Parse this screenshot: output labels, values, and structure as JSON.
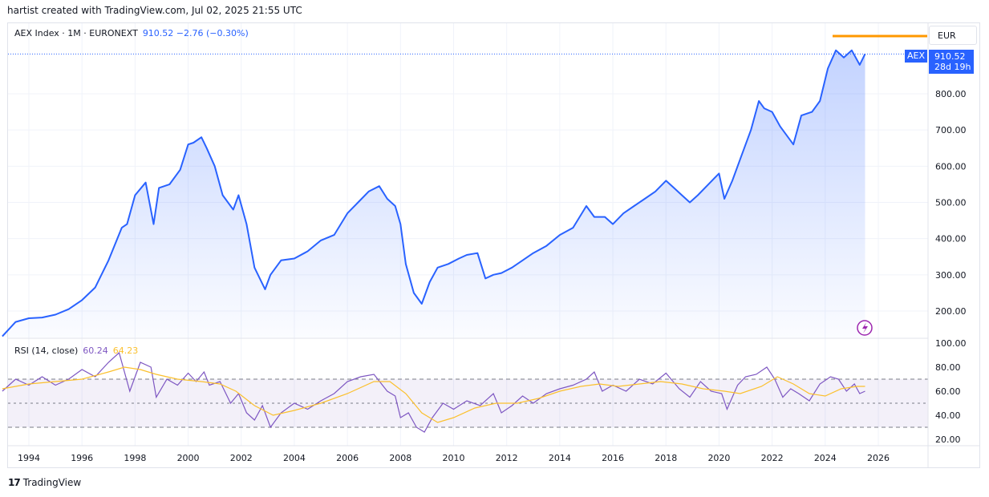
{
  "header": {
    "created_text": "hartist created with TradingView.com, Jul 02, 2025 21:55 UTC"
  },
  "legend": {
    "symbol": "AEX Index · 1M · EURONEXT",
    "values": "910.52  −2.76 (−0.30%)"
  },
  "currency_button": "EUR",
  "last_price": {
    "symbol_tag": "AEX",
    "price": "910.52",
    "countdown": "28d 19h"
  },
  "rsi_legend": {
    "label": "RSI (14, close)",
    "rsi_value": "60.24",
    "ma_value": "64.23"
  },
  "footer": {
    "brand": "TradingView"
  },
  "colors": {
    "price_line": "#2962ff",
    "rsi_line": "#7e57c2",
    "rsi_ma": "#fbc02d",
    "marker_orange": "#ff9800"
  },
  "chart_data": [
    {
      "type": "area",
      "title": "AEX Index · 1M · EURONEXT",
      "ylim": [
        130,
        960
      ],
      "y_ticks": [
        "200.00",
        "300.00",
        "400.00",
        "500.00",
        "600.00",
        "700.00",
        "800.00"
      ],
      "x_ticks": [
        "1994",
        "1996",
        "1998",
        "2000",
        "2002",
        "2004",
        "2006",
        "2008",
        "2010",
        "2012",
        "2014",
        "2016",
        "2018",
        "2020",
        "2022",
        "2024",
        "2026"
      ],
      "x": [
        1993.0,
        1993.5,
        1994.0,
        1994.5,
        1995.0,
        1995.5,
        1996.0,
        1996.5,
        1997.0,
        1997.5,
        1997.7,
        1998.0,
        1998.4,
        1998.7,
        1998.9,
        1999.3,
        1999.7,
        2000.0,
        2000.2,
        2000.5,
        2000.7,
        2001.0,
        2001.3,
        2001.7,
        2001.9,
        2002.2,
        2002.5,
        2002.7,
        2002.9,
        2003.1,
        2003.5,
        2004.0,
        2004.5,
        2005.0,
        2005.5,
        2006.0,
        2006.4,
        2006.8,
        2007.2,
        2007.5,
        2007.8,
        2008.0,
        2008.2,
        2008.5,
        2008.8,
        2009.1,
        2009.4,
        2009.8,
        2010.2,
        2010.5,
        2010.9,
        2011.2,
        2011.5,
        2011.8,
        2012.2,
        2012.6,
        2013.0,
        2013.5,
        2014.0,
        2014.5,
        2015.0,
        2015.3,
        2015.7,
        2016.0,
        2016.4,
        2016.8,
        2017.2,
        2017.6,
        2018.0,
        2018.3,
        2018.6,
        2018.9,
        2019.2,
        2019.6,
        2020.0,
        2020.2,
        2020.5,
        2020.8,
        2021.2,
        2021.5,
        2021.7,
        2022.0,
        2022.3,
        2022.5,
        2022.8,
        2023.1,
        2023.5,
        2023.8,
        2024.1,
        2024.4,
        2024.7,
        2025.0,
        2025.3,
        2025.5
      ],
      "y": [
        130,
        170,
        180,
        182,
        190,
        205,
        230,
        265,
        340,
        430,
        440,
        520,
        555,
        440,
        540,
        550,
        590,
        660,
        665,
        680,
        650,
        600,
        520,
        480,
        520,
        440,
        320,
        290,
        260,
        300,
        340,
        345,
        365,
        395,
        410,
        470,
        500,
        530,
        545,
        510,
        490,
        440,
        330,
        250,
        220,
        280,
        320,
        330,
        345,
        355,
        360,
        290,
        300,
        305,
        320,
        340,
        360,
        380,
        410,
        430,
        490,
        460,
        460,
        440,
        470,
        490,
        510,
        530,
        560,
        540,
        520,
        500,
        520,
        550,
        580,
        510,
        560,
        620,
        700,
        780,
        760,
        750,
        710,
        690,
        660,
        740,
        750,
        780,
        870,
        920,
        900,
        920,
        880,
        910
      ]
    },
    {
      "type": "line",
      "title": "RSI (14, close)",
      "ylim": [
        15,
        105
      ],
      "y_ticks": [
        "100.00",
        "80.00",
        "60.00",
        "40.00",
        "20.00"
      ],
      "bands": [
        30,
        50,
        70
      ],
      "series": [
        {
          "name": "RSI",
          "x": [
            1993.0,
            1993.5,
            1994.0,
            1994.5,
            1995.0,
            1995.5,
            1996.0,
            1996.5,
            1997.0,
            1997.4,
            1997.8,
            1998.2,
            1998.6,
            1998.8,
            1999.2,
            1999.6,
            2000.0,
            2000.3,
            2000.6,
            2000.8,
            2001.2,
            2001.6,
            2001.9,
            2002.2,
            2002.5,
            2002.8,
            2003.1,
            2003.5,
            2004.0,
            2004.5,
            2005.0,
            2005.5,
            2006.0,
            2006.5,
            2007.0,
            2007.5,
            2007.8,
            2008.0,
            2008.3,
            2008.6,
            2008.9,
            2009.2,
            2009.6,
            2010.0,
            2010.5,
            2011.0,
            2011.5,
            2011.8,
            2012.2,
            2012.6,
            2013.0,
            2013.5,
            2014.0,
            2014.5,
            2015.0,
            2015.3,
            2015.6,
            2016.0,
            2016.5,
            2017.0,
            2017.5,
            2018.0,
            2018.5,
            2018.9,
            2019.3,
            2019.7,
            2020.1,
            2020.3,
            2020.7,
            2021.0,
            2021.4,
            2021.8,
            2022.1,
            2022.4,
            2022.7,
            2023.0,
            2023.4,
            2023.8,
            2024.2,
            2024.5,
            2024.8,
            2025.1,
            2025.3,
            2025.5
          ],
          "y": [
            60,
            70,
            65,
            72,
            65,
            70,
            78,
            72,
            84,
            92,
            60,
            84,
            80,
            55,
            70,
            65,
            75,
            68,
            76,
            65,
            68,
            50,
            58,
            42,
            36,
            48,
            30,
            42,
            50,
            45,
            52,
            58,
            68,
            72,
            74,
            60,
            56,
            38,
            42,
            30,
            26,
            38,
            50,
            45,
            52,
            48,
            58,
            42,
            48,
            56,
            50,
            58,
            62,
            65,
            70,
            76,
            60,
            65,
            60,
            70,
            66,
            75,
            62,
            55,
            68,
            60,
            58,
            45,
            65,
            72,
            74,
            80,
            70,
            55,
            62,
            58,
            52,
            66,
            72,
            70,
            60,
            66,
            58,
            60
          ]
        },
        {
          "name": "RSI-based MA",
          "x": [
            1993.0,
            1994.0,
            1995.0,
            1996.0,
            1997.0,
            1997.6,
            1998.2,
            1998.8,
            1999.6,
            2000.5,
            2001.2,
            2001.8,
            2002.5,
            2003.2,
            2004.0,
            2005.0,
            2006.0,
            2007.0,
            2007.6,
            2008.2,
            2008.8,
            2009.4,
            2010.0,
            2010.8,
            2011.6,
            2012.4,
            2013.2,
            2014.0,
            2014.8,
            2015.5,
            2016.2,
            2017.0,
            2017.8,
            2018.6,
            2019.4,
            2020.2,
            2020.8,
            2021.6,
            2022.2,
            2022.8,
            2023.4,
            2024.0,
            2024.6,
            2025.2,
            2025.5
          ],
          "y": [
            62,
            66,
            68,
            70,
            76,
            80,
            78,
            74,
            70,
            68,
            66,
            60,
            48,
            40,
            44,
            50,
            58,
            68,
            68,
            58,
            42,
            34,
            38,
            46,
            50,
            50,
            54,
            60,
            64,
            66,
            64,
            66,
            68,
            66,
            62,
            60,
            58,
            64,
            72,
            66,
            58,
            56,
            62,
            64,
            64
          ]
        }
      ]
    }
  ]
}
